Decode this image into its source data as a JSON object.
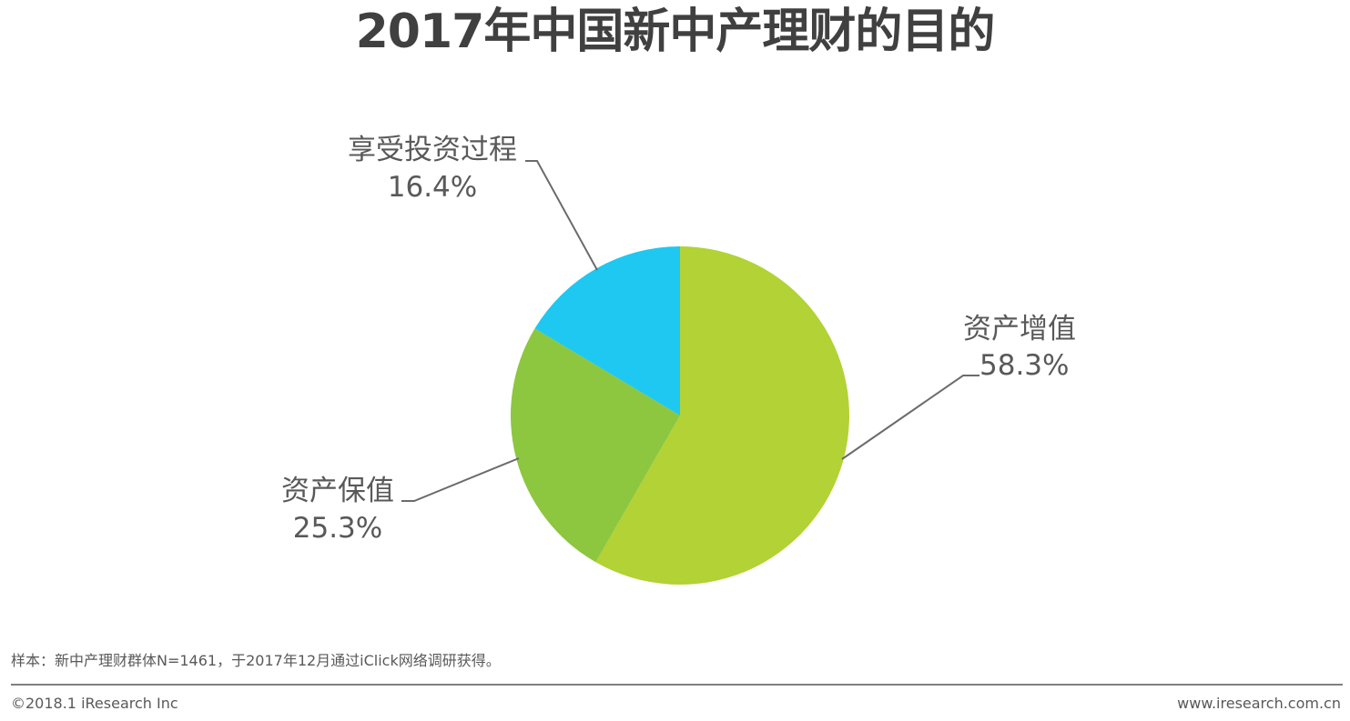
{
  "title": "2017年中国新中产理财的目的",
  "chart_data": {
    "type": "pie",
    "start_angle_deg": 0,
    "direction": "clockwise",
    "slices": [
      {
        "label": "资产增值",
        "value": 58.3,
        "value_label": "58.3%",
        "color": "#b2d235"
      },
      {
        "label": "资产保值",
        "value": 25.3,
        "value_label": "25.3%",
        "color": "#8dc63f"
      },
      {
        "label": "享受投资过程",
        "value": 16.4,
        "value_label": "16.4%",
        "color": "#1ec8f0"
      }
    ]
  },
  "footnote": "样本：新中产理财群体N=1461，于2017年12月通过iClick网络调研获得。",
  "footer": {
    "copyright": "©2018.1 iResearch Inc",
    "website": "www.iresearch.com.cn"
  }
}
